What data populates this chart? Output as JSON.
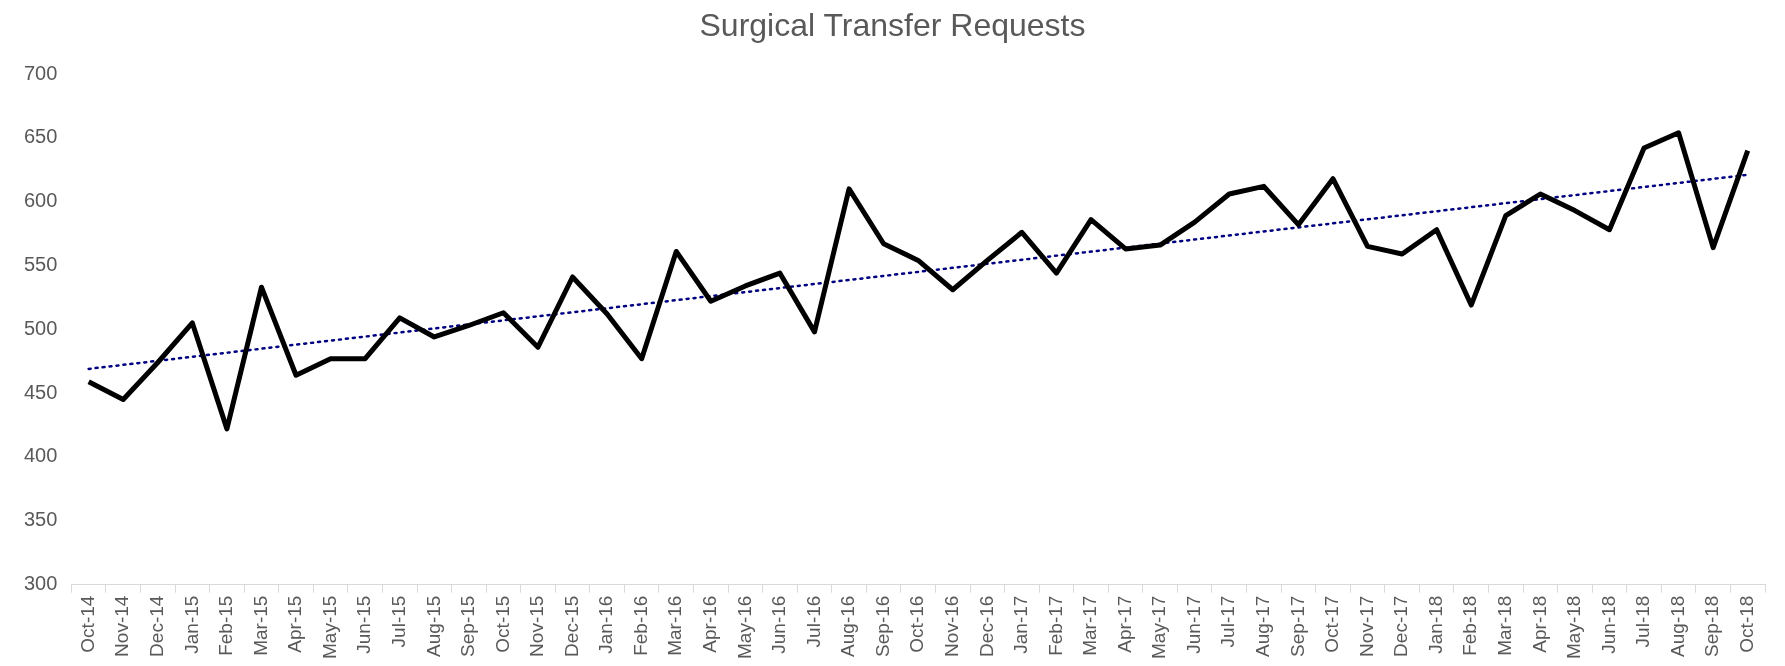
{
  "chart_data": {
    "type": "line",
    "title": "Surgical Transfer Requests",
    "categories": [
      "Oct-14",
      "Nov-14",
      "Dec-14",
      "Jan-15",
      "Feb-15",
      "Mar-15",
      "Apr-15",
      "May-15",
      "Jun-15",
      "Jul-15",
      "Aug-15",
      "Sep-15",
      "Oct-15",
      "Nov-15",
      "Dec-15",
      "Jan-16",
      "Feb-16",
      "Mar-16",
      "Apr-16",
      "May-16",
      "Jun-16",
      "Jul-16",
      "Aug-16",
      "Sep-16",
      "Oct-16",
      "Nov-16",
      "Dec-16",
      "Jan-17",
      "Feb-17",
      "Mar-17",
      "Apr-17",
      "May-17",
      "Jun-17",
      "Jul-17",
      "Aug-17",
      "Sep-17",
      "Oct-17",
      "Nov-17",
      "Dec-17",
      "Jan-18",
      "Feb-18",
      "Mar-18",
      "Apr-18",
      "May-18",
      "Jun-18",
      "Jul-18",
      "Aug-18",
      "Sep-18",
      "Oct-18"
    ],
    "series": [
      {
        "color": "#000000",
        "values": [
          459,
          445,
          474,
          505,
          422,
          533,
          464,
          477,
          477,
          509,
          494,
          503,
          513,
          486,
          541,
          512,
          477,
          561,
          522,
          534,
          544,
          498,
          610,
          567,
          554,
          531,
          554,
          576,
          544,
          586,
          563,
          566,
          584,
          606,
          612,
          582,
          618,
          565,
          559,
          578,
          519,
          589,
          606,
          593,
          578,
          642,
          654,
          564,
          640
        ]
      },
      {
        "type": "line",
        "color": "#000080",
        "line_style": "dotted",
        "x": [
          "Oct-14",
          "Oct-18"
        ],
        "values": [
          469,
          621
        ]
      }
    ],
    "ylim": [
      300,
      700
    ],
    "yticks": [
      300,
      350,
      400,
      450,
      500,
      550,
      600,
      650,
      700
    ],
    "grid": false,
    "legend": false,
    "marker": "none",
    "line_style": "solid"
  }
}
